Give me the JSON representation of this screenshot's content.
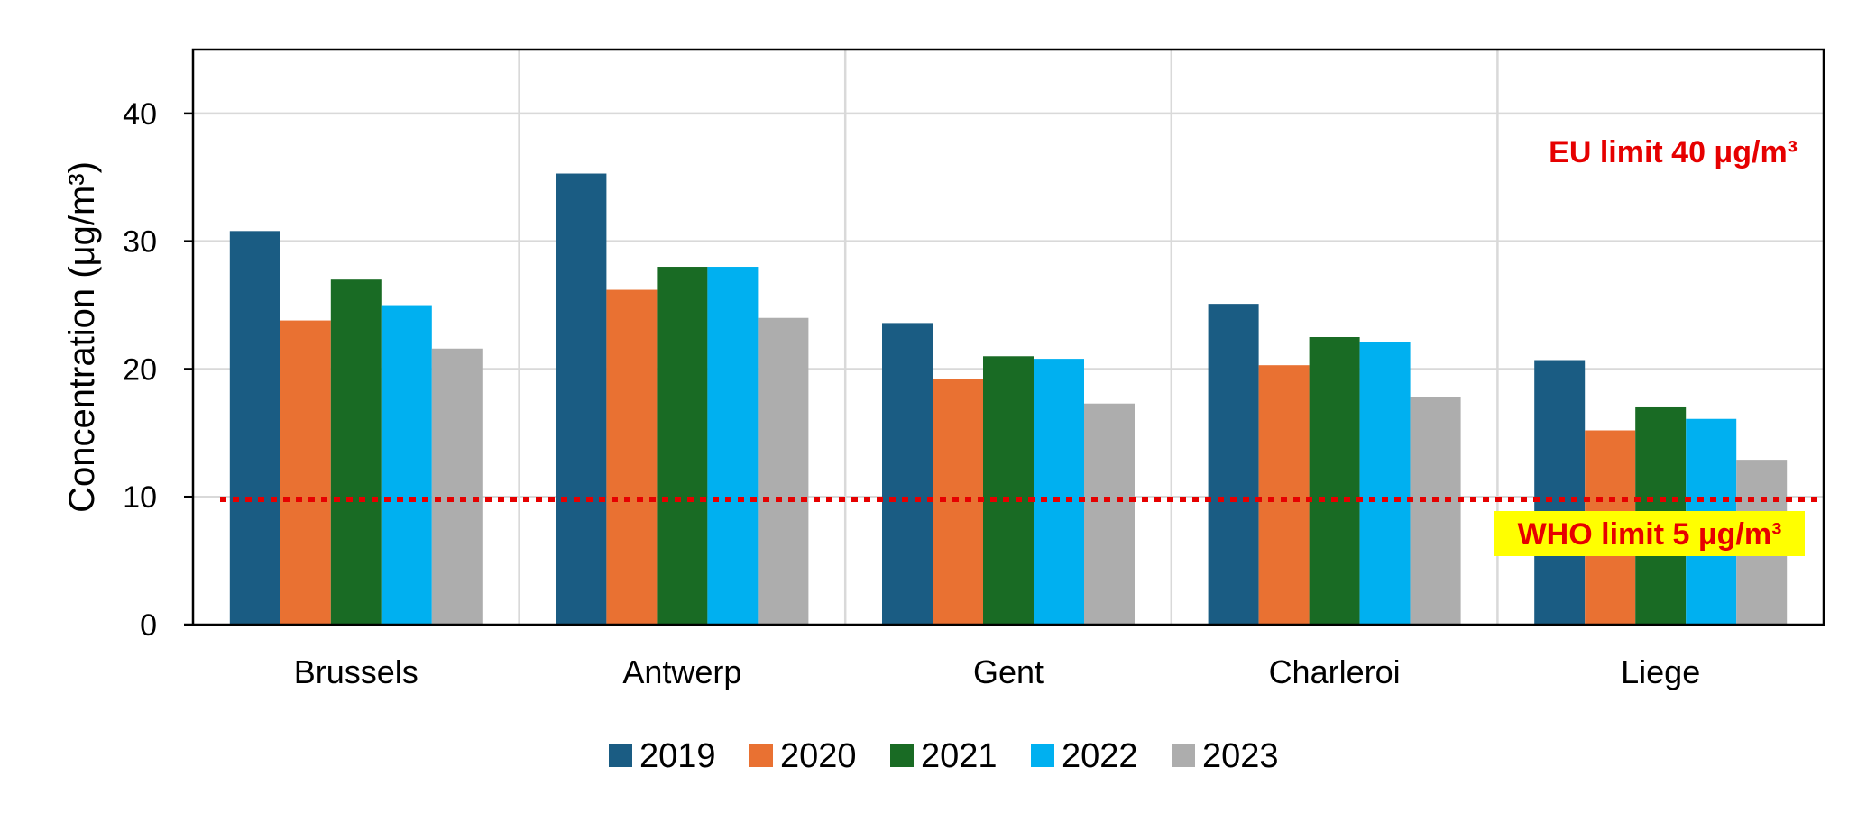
{
  "chart_data": {
    "type": "bar",
    "categories": [
      "Brussels",
      "Antwerp",
      "Gent",
      "Charleroi",
      "Liege"
    ],
    "series": [
      {
        "name": "2019",
        "color": "#1a5c83",
        "values": [
          30.8,
          35.3,
          23.6,
          25.1,
          20.7
        ]
      },
      {
        "name": "2020",
        "color": "#e97132",
        "values": [
          23.8,
          26.2,
          19.2,
          20.3,
          15.2
        ]
      },
      {
        "name": "2021",
        "color": "#196b24",
        "values": [
          27.0,
          28.0,
          21.0,
          22.5,
          17.0
        ]
      },
      {
        "name": "2022",
        "color": "#00b0f0",
        "values": [
          25.0,
          28.0,
          20.8,
          22.1,
          16.1
        ]
      },
      {
        "name": "2023",
        "color": "#adadad",
        "values": [
          21.6,
          24.0,
          17.3,
          17.8,
          12.9
        ]
      }
    ],
    "title": "",
    "xlabel": "",
    "ylabel": "Concentration (μg/m³)",
    "ylim": [
      0,
      45
    ],
    "yticks": [
      0,
      10,
      20,
      30,
      40
    ],
    "grid": true,
    "legend_position": "bottom",
    "reference_line": {
      "value": 9.8,
      "color": "#e60000",
      "style": "dotted"
    },
    "annotations": {
      "eu_limit": "EU limit 40 μg/m³",
      "who_limit": "WHO limit 5 μg/m³",
      "who_highlight_color": "#ffff00"
    }
  }
}
